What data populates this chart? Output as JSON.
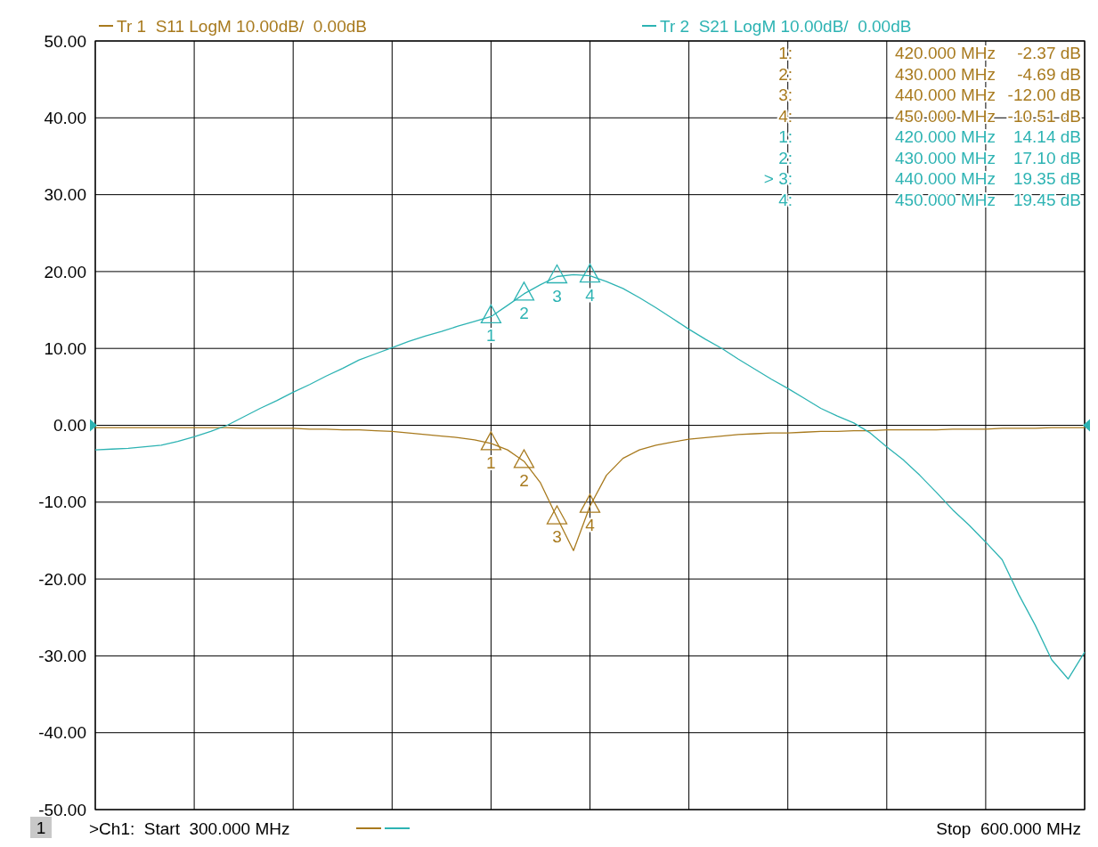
{
  "chart_data": {
    "type": "line",
    "ylim": [
      -50,
      50
    ],
    "categories": [
      null,
      null,
      null,
      null,
      null,
      null,
      null,
      null,
      null,
      null,
      null,
      null,
      null,
      null,
      null,
      null,
      null,
      null,
      null,
      null,
      null,
      null,
      null,
      null,
      null,
      null,
      null,
      null,
      null,
      null,
      null,
      null,
      null,
      null,
      null,
      null,
      null,
      null,
      null,
      null,
      null,
      null,
      null,
      null,
      null,
      null,
      null,
      null,
      null,
      null,
      null,
      null,
      null,
      null,
      null,
      null,
      null,
      null,
      null,
      null,
      null
    ],
    "yticks": [
      {
        "value": 50,
        "label": "50.00"
      },
      {
        "value": 40,
        "label": "40.00"
      },
      {
        "value": 30,
        "label": "30.00"
      },
      {
        "value": 20,
        "label": "20.00"
      },
      {
        "value": 10,
        "label": "10.00"
      },
      {
        "value": 0,
        "label": "0.00"
      },
      {
        "value": -10,
        "label": "-10.00"
      },
      {
        "value": -20,
        "label": "-20.00"
      },
      {
        "value": -30,
        "label": "-30.00"
      },
      {
        "value": -40,
        "label": "-40.00"
      },
      {
        "value": -50,
        "label": "-50.00"
      }
    ],
    "grid": true,
    "legend": "top",
    "marker": "none",
    "line_style": "solid",
    "series": [
      {
        "name": "Tr 1  S11 LogM 10.00dB/  0.00dB",
        "color": "#a87a1e",
        "values": [
          -0.3,
          -0.3,
          -0.3,
          -0.3,
          -0.3,
          -0.3,
          -0.3,
          -0.3,
          -0.3,
          -0.4,
          -0.4,
          -0.4,
          -0.4,
          -0.5,
          -0.5,
          -0.6,
          -0.6,
          -0.7,
          -0.8,
          -1.0,
          -1.2,
          -1.4,
          -1.6,
          -1.9,
          -2.37,
          -3.2,
          -4.69,
          -7.5,
          -12.0,
          -16.3,
          -10.51,
          -6.5,
          -4.3,
          -3.2,
          -2.6,
          -2.2,
          -1.8,
          -1.6,
          -1.4,
          -1.2,
          -1.1,
          -1.0,
          -1.0,
          -0.9,
          -0.8,
          -0.8,
          -0.7,
          -0.7,
          -0.6,
          -0.6,
          -0.6,
          -0.6,
          -0.5,
          -0.5,
          -0.5,
          -0.4,
          -0.4,
          -0.4,
          -0.3,
          -0.3,
          -0.3
        ]
      },
      {
        "name": "Tr 2  S21 LogM 10.00dB/  0.00dB",
        "color": "#2db3b3",
        "values": [
          -3.2,
          -3.1,
          -3.0,
          -2.8,
          -2.6,
          -2.1,
          -1.5,
          -0.8,
          0,
          1.1,
          2.2,
          3.2,
          4.3,
          5.3,
          6.4,
          7.4,
          8.5,
          9.3,
          10.1,
          10.9,
          11.6,
          12.2,
          12.9,
          13.5,
          14.14,
          15.6,
          17.1,
          18.3,
          19.35,
          19.6,
          19.45,
          18.7,
          17.8,
          16.6,
          15.3,
          13.9,
          12.5,
          11.2,
          10.0,
          8.6,
          7.3,
          6.0,
          4.8,
          3.5,
          2.2,
          1.2,
          0.3,
          -1.0,
          -2.8,
          -4.5,
          -6.5,
          -8.7,
          -11,
          -13,
          -15.2,
          -17.5,
          -22,
          -26,
          -30.5,
          -33,
          -29.5
        ]
      },
      {
        "type": "scatter",
        "marker": "triangle",
        "color": "#a87a1e",
        "values": [
          null,
          null,
          null,
          null,
          null,
          null,
          null,
          null,
          null,
          null,
          null,
          null,
          null,
          null,
          null,
          null,
          null,
          null,
          null,
          null,
          null,
          null,
          null,
          null,
          -2.37,
          null,
          -4.69,
          null,
          -12.0,
          null,
          -10.51,
          null,
          null,
          null,
          null,
          null,
          null,
          null,
          null,
          null,
          null,
          null,
          null,
          null,
          null,
          null,
          null,
          null,
          null,
          null,
          null,
          null,
          null,
          null,
          null,
          null,
          null,
          null,
          null,
          null,
          null
        ]
      },
      {
        "type": "scatter",
        "marker": "triangle",
        "color": "#2db3b3",
        "values": [
          null,
          null,
          null,
          null,
          null,
          null,
          null,
          null,
          null,
          null,
          null,
          null,
          null,
          null,
          null,
          null,
          null,
          null,
          null,
          null,
          null,
          null,
          null,
          null,
          14.14,
          null,
          17.1,
          null,
          19.35,
          null,
          19.45,
          null,
          null,
          null,
          null,
          null,
          null,
          null,
          null,
          null,
          null,
          null,
          null,
          null,
          null,
          null,
          null,
          null,
          null,
          null,
          null,
          null,
          null,
          null,
          null,
          null,
          null,
          null,
          null,
          null,
          null
        ]
      }
    ],
    "annotations": [
      {
        "text": "1",
        "y": -2.37
      },
      {
        "text": "2",
        "y": -4.69
      },
      {
        "text": "3",
        "y": -12.0
      },
      {
        "text": "4",
        "y": -10.51
      },
      {
        "text": "1",
        "y": 14.14
      },
      {
        "text": "2",
        "y": 17.1
      },
      {
        "text": "3",
        "y": 19.35
      },
      {
        "text": "4",
        "y": 19.45
      },
      "1:  420.000 MHz  -2.37 dB",
      "2:  430.000 MHz  -4.69 dB",
      "3:  440.000 MHz  -12.00 dB",
      "4:  450.000 MHz  -10.51 dB",
      "1:  420.000 MHz  14.14 dB",
      "2:  430.000 MHz  17.10 dB",
      "> 3:  440.000 MHz  19.35 dB",
      "4:  450.000 MHz  19.45 dB",
      "1",
      ">Ch1:  Start  300.000 MHz",
      "Stop  600.000 MHz"
    ]
  }
}
